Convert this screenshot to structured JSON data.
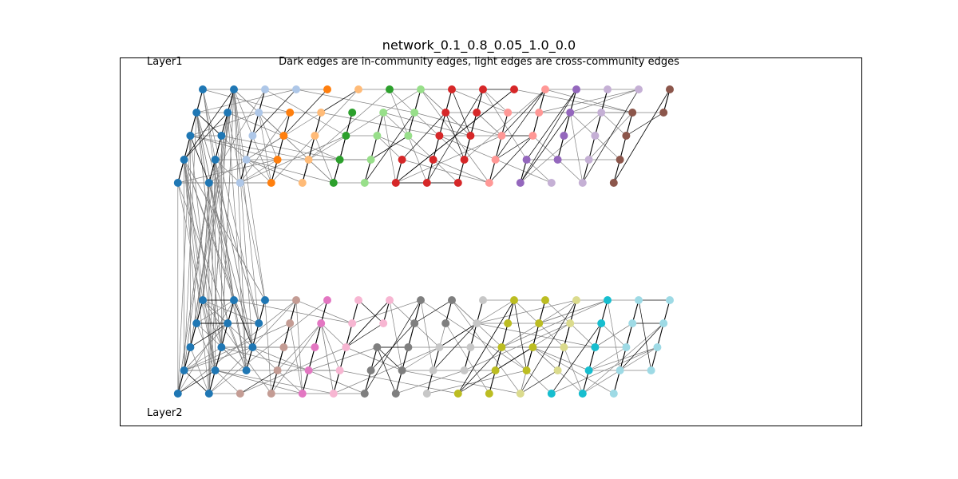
{
  "title": "network_0.1_0.8_0.05_1.0_0.0",
  "subtitle": "Dark edges are in-community edges, light edges are cross-community edges",
  "layers": [
    "Layer1",
    "Layer2"
  ],
  "legend": {
    "in_community_edge_color": "#000000",
    "cross_community_edge_color": "#808080"
  },
  "communities": {
    "layer1": [
      {
        "id": 0,
        "color": "#1f77b4",
        "size": 10
      },
      {
        "id": 1,
        "color": "#aec7e8",
        "size": 6
      },
      {
        "id": 2,
        "color": "#ff7f0e",
        "size": 5
      },
      {
        "id": 3,
        "color": "#ffbb78",
        "size": 5
      },
      {
        "id": 4,
        "color": "#2ca02c",
        "size": 5
      },
      {
        "id": 5,
        "color": "#98df8a",
        "size": 7
      },
      {
        "id": 6,
        "color": "#d62728",
        "size": 13
      },
      {
        "id": 7,
        "color": "#ff9896",
        "size": 7
      },
      {
        "id": 8,
        "color": "#9467bd",
        "size": 6
      },
      {
        "id": 9,
        "color": "#c5b0d5",
        "size": 7
      },
      {
        "id": 10,
        "color": "#8c564b",
        "size": 6
      }
    ],
    "layer2": [
      {
        "id": 0,
        "color": "#1f77b4",
        "size": 14
      },
      {
        "id": 10,
        "color": "#c49c94",
        "size": 6
      },
      {
        "id": 11,
        "color": "#e377c2",
        "size": 5
      },
      {
        "id": 12,
        "color": "#f7b6d2",
        "size": 7
      },
      {
        "id": 13,
        "color": "#7f7f7f",
        "size": 10
      },
      {
        "id": 14,
        "color": "#c7c7c7",
        "size": 7
      },
      {
        "id": 15,
        "color": "#bcbd22",
        "size": 10
      },
      {
        "id": 16,
        "color": "#dbdb8d",
        "size": 5
      },
      {
        "id": 17,
        "color": "#17becf",
        "size": 6
      },
      {
        "id": 18,
        "color": "#9edae5",
        "size": 9
      }
    ]
  }
}
